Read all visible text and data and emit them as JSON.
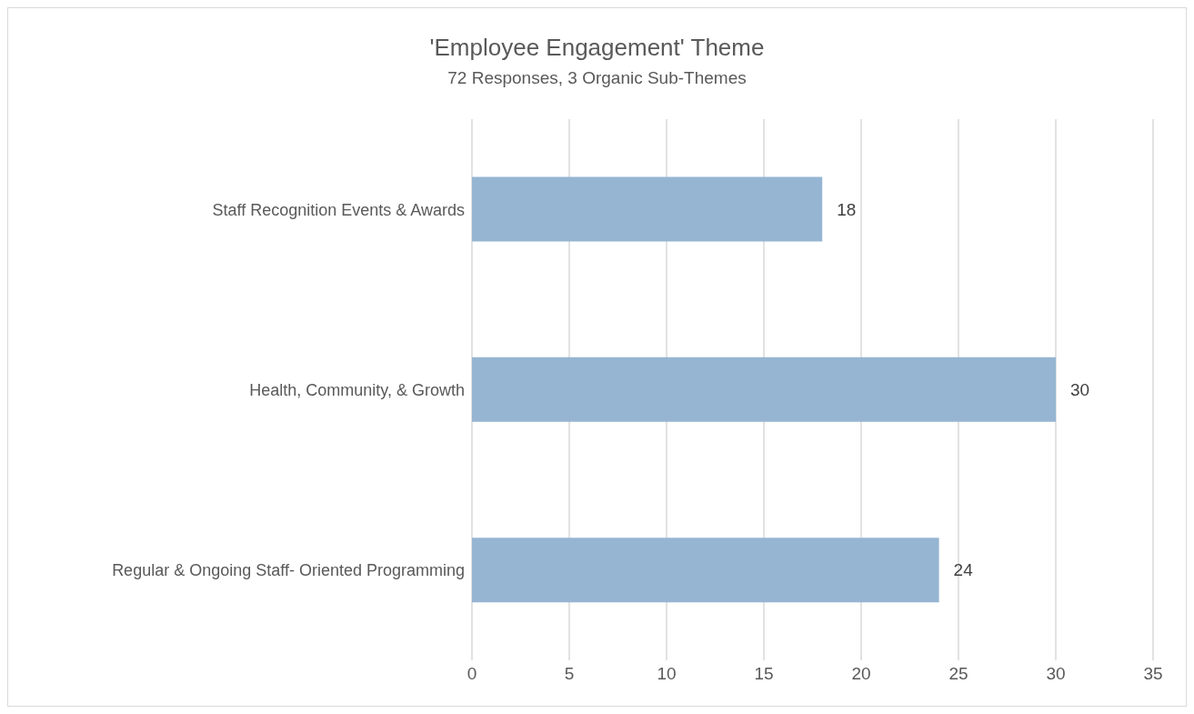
{
  "chart_data": {
    "type": "bar",
    "orientation": "horizontal",
    "title": "'Employee Engagement' Theme",
    "subtitle": "72 Responses, 3 Organic Sub-Themes",
    "categories": [
      "Staff Recognition Events & Awards",
      "Health, Community, & Growth",
      "Regular & Ongoing Staff- Oriented Programming"
    ],
    "values": [
      18,
      30,
      24
    ],
    "color": "#95b5d2",
    "xlim": [
      0,
      35
    ],
    "xticks": [
      0,
      5,
      10,
      15,
      20,
      25,
      30,
      35
    ],
    "grid": "x",
    "data_labels": true
  }
}
